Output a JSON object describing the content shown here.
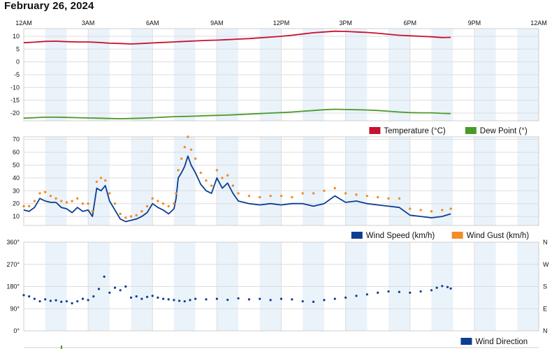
{
  "page": {
    "title": "February 26, 2024"
  },
  "colors": {
    "temperature": "#c8102e",
    "dew_point": "#4a9a2a",
    "wind_speed": "#0b3d91",
    "wind_gust": "#f28c28",
    "wind_direction": "#0b3d91",
    "band": "#eaf2fa",
    "grid": "#dddddd"
  },
  "chart_data": [
    {
      "id": "temperature",
      "type": "line",
      "x_ticks": [
        "12AM",
        "3AM",
        "6AM",
        "9AM",
        "12PM",
        "3PM",
        "6PM",
        "9PM",
        "12AM"
      ],
      "xlim": [
        0,
        24
      ],
      "ylim": [
        -23,
        13
      ],
      "y_ticks": [
        "10",
        "5",
        "0",
        "-5",
        "-10",
        "-15",
        "-20"
      ],
      "y_tick_values": [
        10,
        5,
        0,
        -5,
        -10,
        -15,
        -20
      ],
      "grid": true,
      "legend_position": "bottom-right",
      "series": [
        {
          "name": "Temperature (°C)",
          "color": "#c8102e",
          "x": [
            0,
            0.5,
            1,
            1.5,
            2,
            2.5,
            3,
            3.5,
            4,
            4.5,
            5,
            5.5,
            6,
            6.5,
            7,
            7.5,
            8,
            8.5,
            9,
            9.5,
            10,
            10.5,
            11,
            11.5,
            12,
            12.5,
            13,
            13.5,
            14,
            14.5,
            15,
            15.5,
            16,
            16.5,
            17,
            17.5,
            18,
            18.5,
            19,
            19.5,
            19.9
          ],
          "y": [
            7.5,
            7.7,
            8.0,
            8.1,
            7.9,
            7.8,
            7.8,
            7.6,
            7.3,
            7.2,
            7.0,
            7.2,
            7.4,
            7.6,
            7.8,
            8.0,
            8.2,
            8.4,
            8.5,
            8.7,
            8.9,
            9.1,
            9.4,
            9.7,
            10.0,
            10.4,
            10.9,
            11.4,
            11.7,
            12.0,
            11.9,
            11.7,
            11.5,
            11.2,
            10.8,
            10.4,
            10.2,
            10.0,
            9.8,
            9.5,
            9.6
          ]
        },
        {
          "name": "Dew Point (°)",
          "color": "#4a9a2a",
          "x": [
            0,
            0.5,
            1,
            1.5,
            2,
            2.5,
            3,
            3.5,
            4,
            4.5,
            5,
            5.5,
            6,
            6.5,
            7,
            7.5,
            8,
            8.5,
            9,
            9.5,
            10,
            10.5,
            11,
            11.5,
            12,
            12.5,
            13,
            13.5,
            14,
            14.5,
            15,
            15.5,
            16,
            16.5,
            17,
            17.5,
            18,
            18.5,
            19,
            19.5,
            19.9
          ],
          "y": [
            -22.0,
            -21.8,
            -21.6,
            -21.6,
            -21.7,
            -21.8,
            -21.9,
            -22.0,
            -22.1,
            -22.2,
            -22.1,
            -22.0,
            -21.8,
            -21.6,
            -21.4,
            -21.3,
            -21.2,
            -21.0,
            -20.9,
            -20.8,
            -20.6,
            -20.4,
            -20.2,
            -20.0,
            -19.8,
            -19.6,
            -19.3,
            -19.0,
            -18.7,
            -18.5,
            -18.6,
            -18.7,
            -18.8,
            -19.0,
            -19.3,
            -19.6,
            -19.8,
            -19.9,
            -19.9,
            -20.1,
            -20.2
          ]
        }
      ]
    },
    {
      "id": "wind",
      "type": "line",
      "xlim": [
        0,
        24
      ],
      "ylim": [
        3,
        72
      ],
      "y_ticks": [
        "70",
        "60",
        "50",
        "40",
        "30",
        "20",
        "10"
      ],
      "y_tick_values": [
        70,
        60,
        50,
        40,
        30,
        20,
        10
      ],
      "grid": true,
      "legend_position": "bottom-right",
      "series": [
        {
          "name": "Wind Speed (km/h)",
          "color": "#0b3d91",
          "x": [
            0,
            0.25,
            0.5,
            0.75,
            1,
            1.25,
            1.5,
            1.75,
            2,
            2.25,
            2.5,
            2.75,
            3,
            3.2,
            3.4,
            3.6,
            3.8,
            4,
            4.25,
            4.5,
            4.75,
            5,
            5.25,
            5.5,
            5.75,
            6,
            6.25,
            6.5,
            6.75,
            7,
            7.1,
            7.2,
            7.35,
            7.5,
            7.65,
            7.8,
            8,
            8.25,
            8.5,
            8.75,
            9,
            9.25,
            9.5,
            9.75,
            10,
            10.5,
            11,
            11.5,
            12,
            12.5,
            13,
            13.5,
            14,
            14.5,
            15,
            15.5,
            16,
            16.5,
            17,
            17.5,
            18,
            18.5,
            19,
            19.5,
            19.9
          ],
          "y": [
            15,
            14,
            17,
            24,
            22,
            21,
            21,
            17,
            16,
            13,
            17,
            14,
            15,
            10,
            32,
            30,
            34,
            22,
            15,
            8,
            6,
            7,
            8,
            10,
            13,
            20,
            17,
            15,
            12,
            16,
            24,
            40,
            44,
            49,
            57,
            50,
            44,
            35,
            30,
            28,
            40,
            32,
            36,
            28,
            22,
            20,
            19,
            20,
            19,
            20,
            20,
            18,
            20,
            26,
            21,
            22,
            20,
            19,
            18,
            17,
            11,
            10,
            9,
            10,
            12
          ]
        },
        {
          "name": "Wind Gust (km/h)",
          "color": "#f28c28",
          "x": [
            0,
            0.25,
            0.5,
            0.75,
            1,
            1.25,
            1.5,
            1.75,
            2,
            2.25,
            2.5,
            2.75,
            3,
            3.2,
            3.4,
            3.6,
            3.8,
            4,
            4.25,
            4.5,
            4.75,
            5,
            5.25,
            5.5,
            5.75,
            6,
            6.25,
            6.5,
            6.75,
            7,
            7.1,
            7.2,
            7.35,
            7.5,
            7.65,
            7.8,
            8,
            8.25,
            8.5,
            8.75,
            9,
            9.25,
            9.5,
            9.75,
            10,
            10.5,
            11,
            11.5,
            12,
            12.5,
            13,
            13.5,
            14,
            14.5,
            15,
            15.5,
            16,
            16.5,
            17,
            17.5,
            18,
            18.5,
            19,
            19.5,
            19.9
          ],
          "y": [
            18,
            18,
            22,
            28,
            29,
            26,
            24,
            22,
            21,
            22,
            24,
            20,
            20,
            14,
            37,
            40,
            38,
            28,
            20,
            12,
            9,
            10,
            11,
            14,
            18,
            24,
            22,
            20,
            18,
            20,
            28,
            46,
            55,
            64,
            72,
            62,
            55,
            44,
            38,
            34,
            46,
            40,
            42,
            34,
            28,
            26,
            25,
            26,
            26,
            25,
            28,
            28,
            30,
            32,
            28,
            27,
            26,
            25,
            24,
            24,
            16,
            15,
            14,
            15,
            16
          ]
        }
      ]
    },
    {
      "id": "wind-direction",
      "type": "scatter",
      "xlim": [
        0,
        24
      ],
      "ylim": [
        0,
        360
      ],
      "y_ticks": [
        "360°",
        "270°",
        "180°",
        "90°",
        "0°"
      ],
      "y_tick_values": [
        360,
        270,
        180,
        90,
        0
      ],
      "right_ticks": [
        "N",
        "W",
        "S",
        "E",
        "N"
      ],
      "grid": true,
      "legend_position": "bottom-right",
      "series": [
        {
          "name": "Wind Direction",
          "color": "#0b3d91",
          "x": [
            0,
            0.25,
            0.5,
            0.75,
            1,
            1.25,
            1.5,
            1.75,
            2,
            2.25,
            2.5,
            2.75,
            3,
            3.25,
            3.5,
            3.75,
            4,
            4.25,
            4.5,
            4.75,
            5,
            5.25,
            5.5,
            5.75,
            6,
            6.25,
            6.5,
            6.75,
            7,
            7.25,
            7.5,
            7.75,
            8,
            8.5,
            9,
            9.5,
            10,
            10.5,
            11,
            11.5,
            12,
            12.5,
            13,
            13.5,
            14,
            14.5,
            15,
            15.5,
            16,
            16.5,
            17,
            17.5,
            18,
            18.5,
            19,
            19.25,
            19.5,
            19.75,
            19.9
          ],
          "y": [
            145,
            140,
            130,
            120,
            128,
            122,
            124,
            118,
            120,
            112,
            120,
            130,
            125,
            140,
            170,
            220,
            155,
            175,
            165,
            180,
            135,
            140,
            130,
            138,
            142,
            135,
            130,
            128,
            125,
            122,
            120,
            125,
            130,
            128,
            130,
            126,
            132,
            128,
            130,
            125,
            130,
            128,
            120,
            118,
            125,
            130,
            135,
            142,
            148,
            155,
            160,
            158,
            155,
            160,
            165,
            175,
            182,
            178,
            172
          ]
        }
      ]
    }
  ]
}
